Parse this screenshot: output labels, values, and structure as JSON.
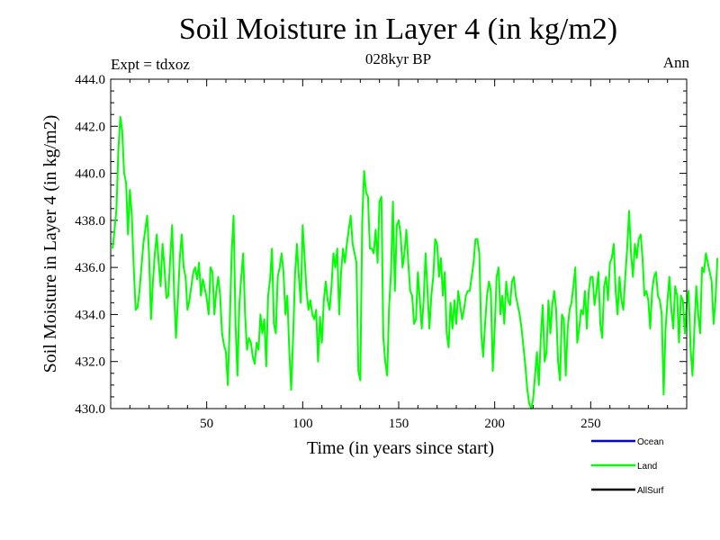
{
  "header": {
    "title": "Soil Moisture in Layer 4 (in kg/m2)",
    "subtitle": "028kyr BP",
    "expt": "Expt = tdxoz",
    "season": "Ann"
  },
  "chart_data": {
    "type": "line",
    "title": "Soil Moisture in Layer 4 (in kg/m2)",
    "subtitle": "028kyr BP",
    "xlabel": "Time (in years since start)",
    "ylabel": "Soil Moisture in Layer 4 (in kg/m2)",
    "xlim": [
      0,
      300
    ],
    "ylim": [
      430.0,
      444.0
    ],
    "xticks": [
      50,
      100,
      150,
      200,
      250
    ],
    "yticks": [
      430.0,
      432.0,
      434.0,
      436.0,
      438.0,
      440.0,
      442.0,
      444.0
    ],
    "legend_position": "bottom-right",
    "legend": [
      {
        "name": "Ocean",
        "color": "#0000ff"
      },
      {
        "name": "Land",
        "color": "#00ff00"
      },
      {
        "name": "AllSurf",
        "color": "#000000"
      }
    ],
    "series": [
      {
        "name": "Land",
        "color": "#00ff00",
        "x_start": 1,
        "x_step": 1,
        "values": [
          436.8,
          437.6,
          438.5,
          441.0,
          442.4,
          441.8,
          440.0,
          439.6,
          437.4,
          439.3,
          438.2,
          436.0,
          434.2,
          434.3,
          435.0,
          436.0,
          437.0,
          437.6,
          438.2,
          436.5,
          433.8,
          435.4,
          436.6,
          437.4,
          436.2,
          435.2,
          437.0,
          436.0,
          434.7,
          434.8,
          436.4,
          437.8,
          435.0,
          433.0,
          434.6,
          436.4,
          437.4,
          436.0,
          435.6,
          434.2,
          434.6,
          435.2,
          435.8,
          436.0,
          435.5,
          436.2,
          434.8,
          435.5,
          435.1,
          434.7,
          434.0,
          436.0,
          435.8,
          434.0,
          435.0,
          435.6,
          434.8,
          433.2,
          432.7,
          432.4,
          431.0,
          433.6,
          436.6,
          438.2,
          433.6,
          431.4,
          434.4,
          435.6,
          436.6,
          434.0,
          432.5,
          433.0,
          432.8,
          432.2,
          431.9,
          432.8,
          432.5,
          434.0,
          433.2,
          433.8,
          431.8,
          434.8,
          435.5,
          436.8,
          433.6,
          433.2,
          435.6,
          436.0,
          436.6,
          435.8,
          434.0,
          434.8,
          432.5,
          430.8,
          433.0,
          435.7,
          437.0,
          435.6,
          434.5,
          437.8,
          436.4,
          435.0,
          434.2,
          434.6,
          434.0,
          433.8,
          434.2,
          432.0,
          433.9,
          432.8,
          434.6,
          435.4,
          434.6,
          434.2,
          435.2,
          436.6,
          436.0,
          436.8,
          434.0,
          435.8,
          436.8,
          436.2,
          437.0,
          437.6,
          438.2,
          437.0,
          436.6,
          436.2,
          431.6,
          431.2,
          438.0,
          440.1,
          439.2,
          439.0,
          436.8,
          436.8,
          436.6,
          437.6,
          436.2,
          438.8,
          439.0,
          433.0,
          432.0,
          431.4,
          434.3,
          435.8,
          438.8,
          435.0,
          437.8,
          438.0,
          437.4,
          436.0,
          436.6,
          437.6,
          436.2,
          435.0,
          434.8,
          433.6,
          433.8,
          435.8,
          434.6,
          433.4,
          434.6,
          436.6,
          435.0,
          433.4,
          434.8,
          435.6,
          437.2,
          437.0,
          435.6,
          436.4,
          434.8,
          435.8,
          433.2,
          432.6,
          434.5,
          433.4,
          434.6,
          433.6,
          435.0,
          434.4,
          433.8,
          434.2,
          434.8,
          435.0,
          435.0,
          435.6,
          436.2,
          437.2,
          437.2,
          436.6,
          433.2,
          432.2,
          433.6,
          434.8,
          435.4,
          435.0,
          431.6,
          433.4,
          435.6,
          436.0,
          434.0,
          434.8,
          433.6,
          435.4,
          434.6,
          434.4,
          435.4,
          435.6,
          434.8,
          434.4,
          434.0,
          433.4,
          432.6,
          431.8,
          430.8,
          430.2,
          430.0,
          430.4,
          431.4,
          432.4,
          431.0,
          433.0,
          434.4,
          432.0,
          432.4,
          434.6,
          433.2,
          434.4,
          435.0,
          434.2,
          432.0,
          431.2,
          434.0,
          433.8,
          431.4,
          433.4,
          434.2,
          434.5,
          435.2,
          436.0,
          432.8,
          433.4,
          434.2,
          434.0,
          435.0,
          433.4,
          435.0,
          435.6,
          435.6,
          434.4,
          435.0,
          435.8,
          433.6,
          433.0,
          435.2,
          435.6,
          434.6,
          436.2,
          436.4,
          437.0,
          435.0,
          434.0,
          435.6,
          434.6,
          434.2,
          435.6,
          436.8,
          438.4,
          436.6,
          435.6,
          437.0,
          436.4,
          437.2,
          437.4,
          436.4,
          434.8,
          435.0,
          434.6,
          433.4,
          435.0,
          435.6,
          435.8,
          434.8,
          434.6,
          434.0,
          430.6,
          433.4,
          434.6,
          435.6,
          434.2,
          433.4,
          435.2,
          434.8,
          432.8,
          434.8,
          434.6,
          433.2,
          434.4,
          435.0,
          432.6,
          431.4,
          433.4,
          435.2,
          434.0,
          433.2,
          436.0,
          435.8,
          436.6,
          436.2,
          435.8,
          435.4,
          433.6,
          434.6,
          436.4
        ]
      }
    ]
  }
}
